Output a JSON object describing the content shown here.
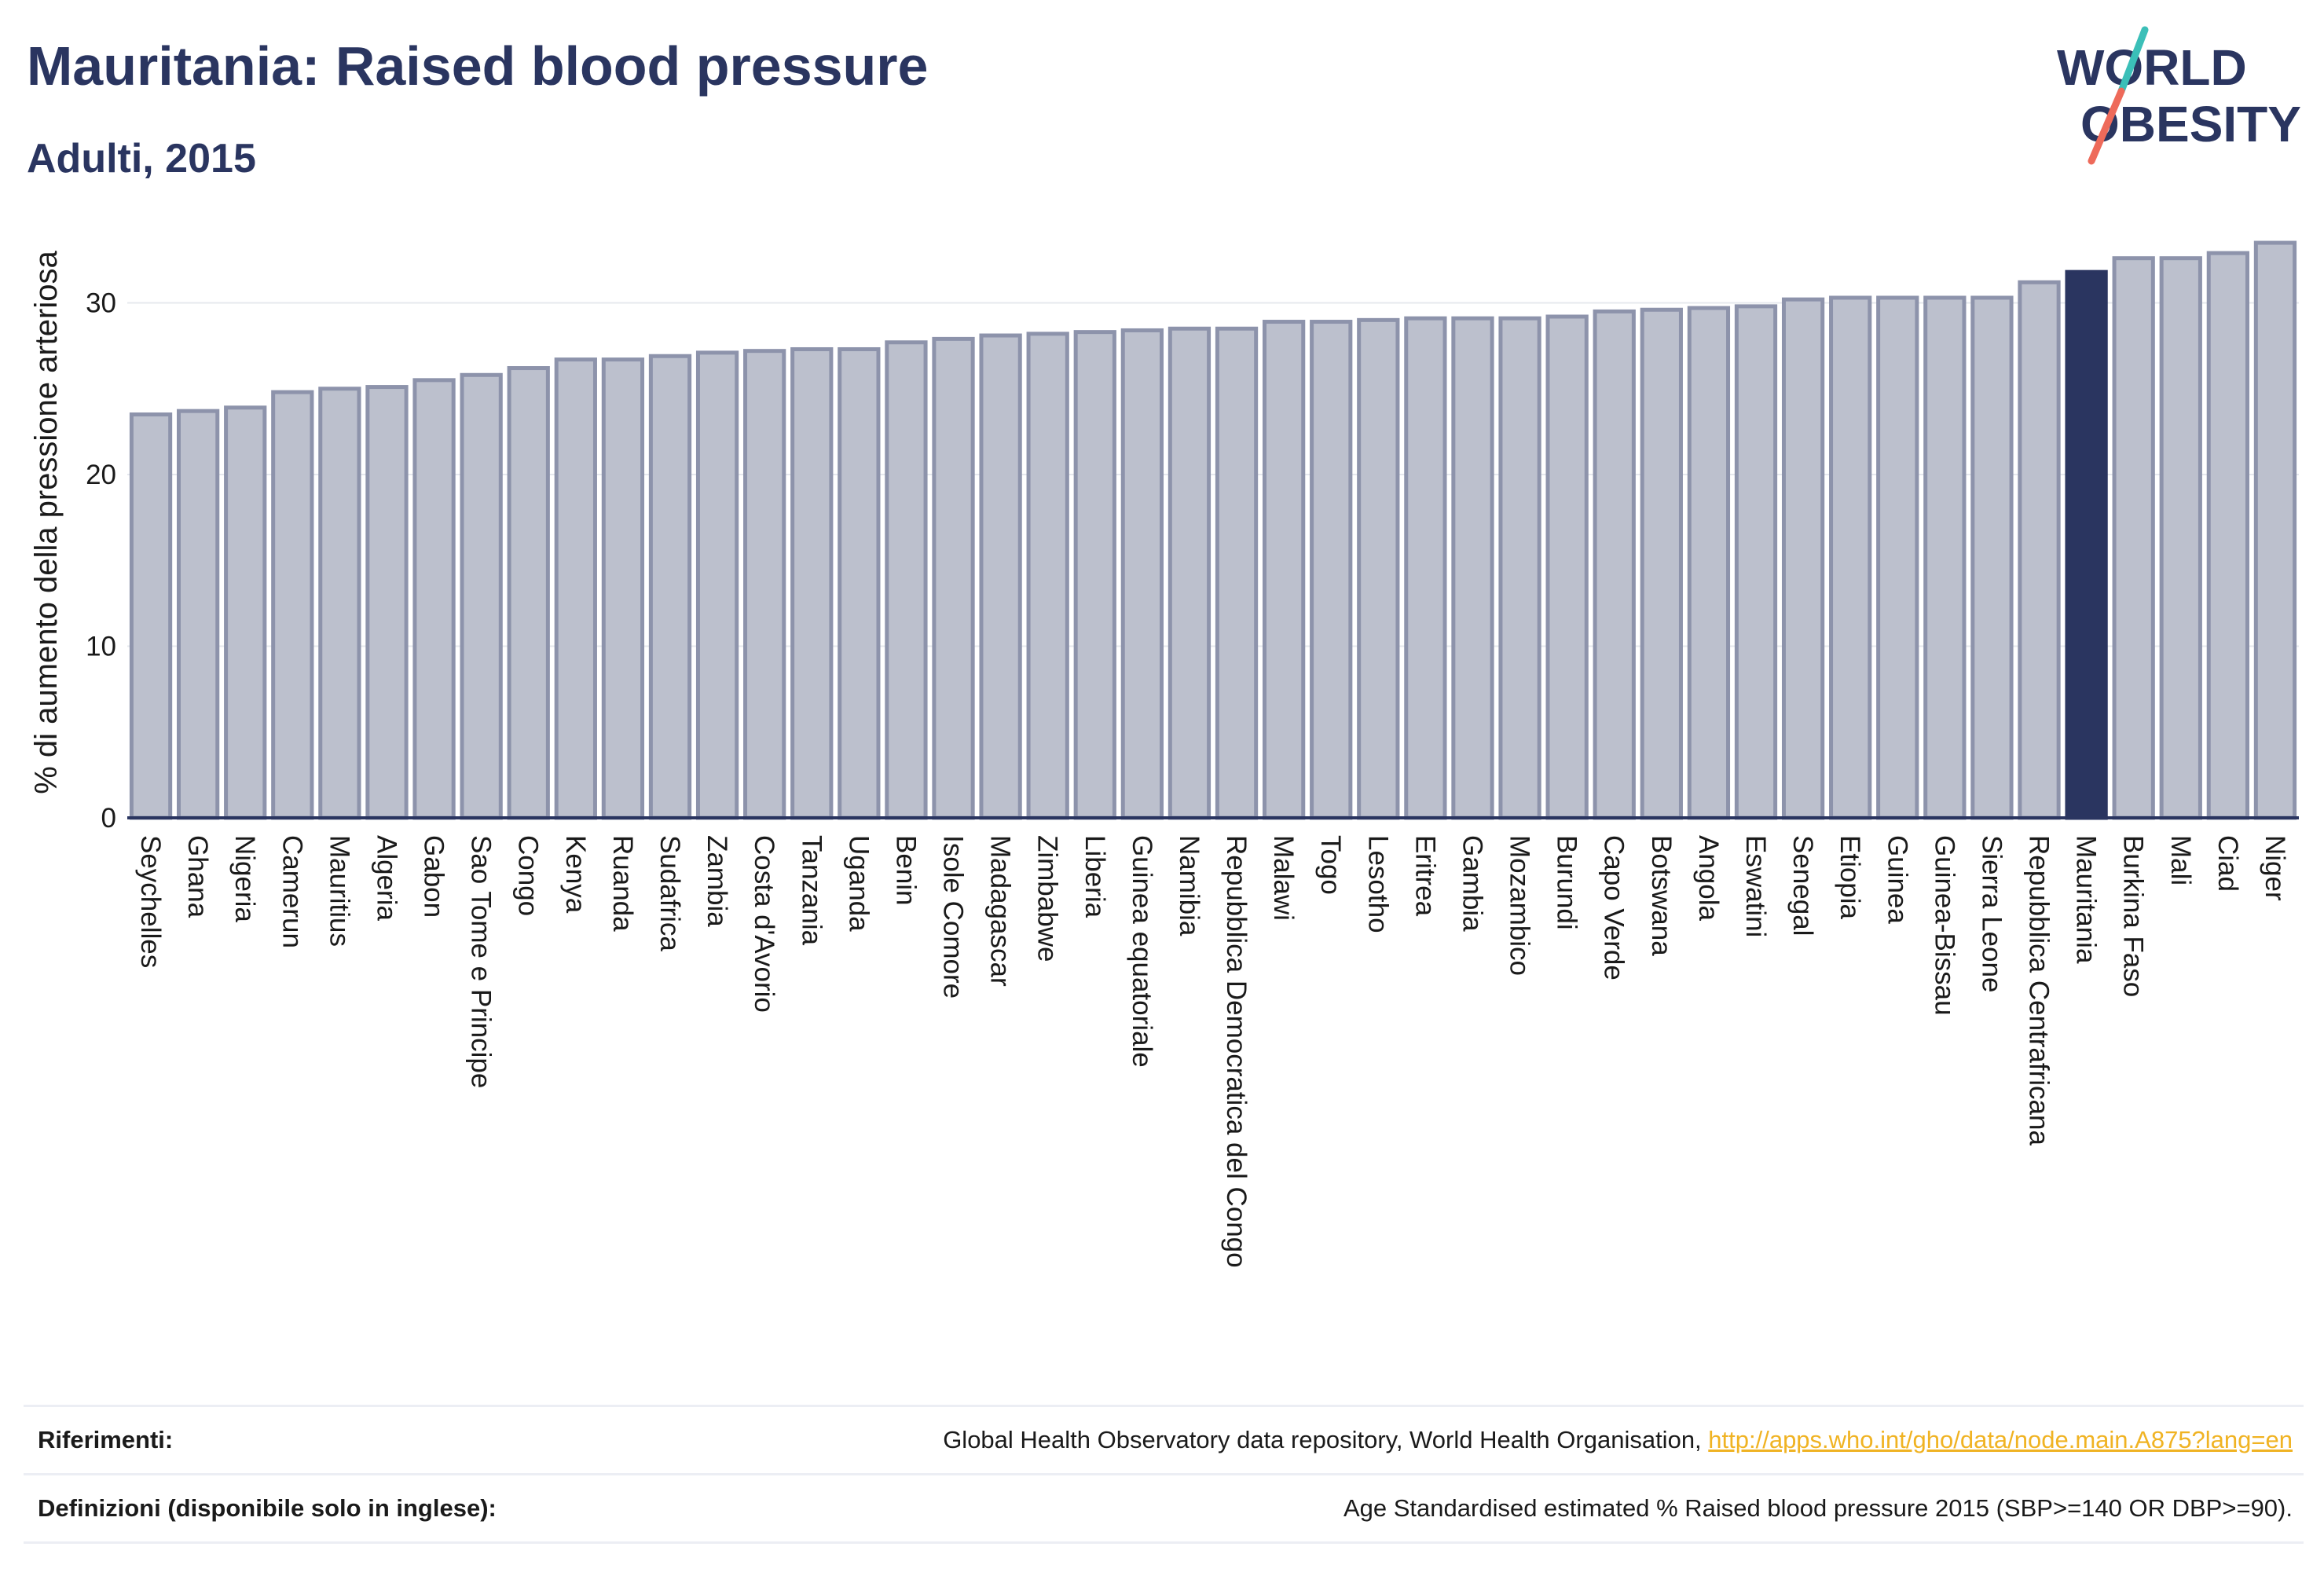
{
  "header": {
    "title": "Mauritania: Raised blood pressure",
    "subtitle": "Adulti, 2015"
  },
  "logo": {
    "line1": "WORLD",
    "line2": "OBESITY",
    "colors": {
      "text": "#2a3560",
      "slash_teal": "#3bbfb8",
      "slash_coral": "#ee6a5a"
    }
  },
  "chart_data": {
    "type": "bar",
    "ylabel": "% di aumento della pressione arteriosa",
    "xlabel": "",
    "ylim": [
      0,
      35
    ],
    "yticks": [
      0,
      10,
      20,
      30
    ],
    "grid": true,
    "highlight": "Mauritania",
    "colors": {
      "bar": "#bcc0cd",
      "bar_edge": "#8d93ab",
      "highlight": "#2a3560",
      "axis": "#2a3560",
      "grid": "#e6e8ee"
    },
    "categories": [
      "Seychelles",
      "Ghana",
      "Nigeria",
      "Camerun",
      "Mauritius",
      "Algeria",
      "Gabon",
      "Sao Tome e Principe",
      "Congo",
      "Kenya",
      "Ruanda",
      "Sudafrica",
      "Zambia",
      "Costa d'Avorio",
      "Tanzania",
      "Uganda",
      "Benin",
      "Isole Comore",
      "Madagascar",
      "Zimbabwe",
      "Liberia",
      "Guinea equatoriale",
      "Namibia",
      "Repubblica Democratica del Congo",
      "Malawi",
      "Togo",
      "Lesotho",
      "Eritrea",
      "Gambia",
      "Mozambico",
      "Burundi",
      "Capo Verde",
      "Botswana",
      "Angola",
      "Eswatini",
      "Senegal",
      "Etiopia",
      "Guinea",
      "Guinea-Bissau",
      "Sierra Leone",
      "Repubblica Centrafricana",
      "Mauritania",
      "Burkina Faso",
      "Mali",
      "Ciad",
      "Niger"
    ],
    "values": [
      23.5,
      23.7,
      23.9,
      24.8,
      25.0,
      25.1,
      25.5,
      25.8,
      26.2,
      26.7,
      26.7,
      26.9,
      27.1,
      27.2,
      27.3,
      27.3,
      27.7,
      27.9,
      28.1,
      28.2,
      28.3,
      28.4,
      28.5,
      28.5,
      28.9,
      28.9,
      29.0,
      29.1,
      29.1,
      29.1,
      29.2,
      29.5,
      29.6,
      29.7,
      29.8,
      30.2,
      30.3,
      30.3,
      30.3,
      30.3,
      31.2,
      31.8,
      32.6,
      32.6,
      32.9,
      33.5
    ]
  },
  "footer": {
    "references_label": "Riferimenti:",
    "references_text": "Global Health Observatory data repository, World Health Organisation, ",
    "references_link": "http://apps.who.int/gho/data/node.main.A875?lang=en",
    "definitions_label": "Definizioni (disponibile solo in inglese):",
    "definitions_text": "Age Standardised estimated % Raised blood pressure 2015 (SBP>=140 OR DBP>=90)."
  }
}
